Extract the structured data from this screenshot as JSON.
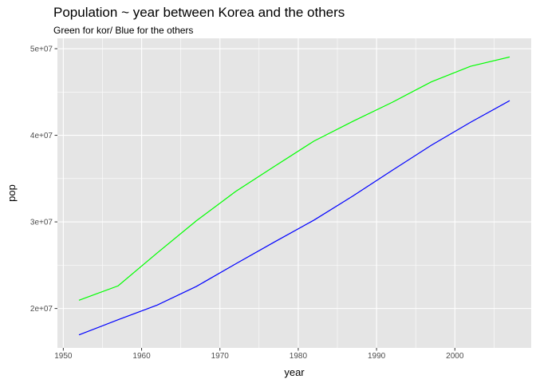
{
  "chart_data": {
    "type": "line",
    "title": "Population ~ year between Korea and the others",
    "subtitle": "Green for kor/ Blue for the others",
    "xlabel": "year",
    "ylabel": "pop",
    "xlim": [
      1949.25,
      2009.75
    ],
    "ylim": [
      15450000,
      51200000
    ],
    "x_ticks": [
      1950,
      1960,
      1970,
      1980,
      1990,
      2000
    ],
    "x_tick_labels": [
      "1950",
      "1960",
      "1970",
      "1980",
      "1990",
      "2000"
    ],
    "y_ticks": [
      20000000,
      30000000,
      40000000,
      50000000
    ],
    "y_tick_labels": [
      "2e+07",
      "3e+07",
      "4e+07",
      "5e+07"
    ],
    "grid": true,
    "legend": "none",
    "panel_background": "#e5e5e5",
    "grid_color": "#ffffff",
    "series": [
      {
        "color": "#00ff00",
        "x": [
          1952,
          1957,
          1962,
          1967,
          1972,
          1977,
          1982,
          1987,
          1992,
          1997,
          2002,
          2007
        ],
        "y": [
          20947571,
          22611552,
          26420307,
          30131000,
          33505000,
          36436000,
          39326000,
          41622000,
          43805450,
          46173816,
          47969150,
          49044790
        ]
      },
      {
        "color": "#0000ff",
        "x": [
          1952,
          1957,
          1962,
          1967,
          1972,
          1977,
          1982,
          1987,
          1992,
          1997,
          2002,
          2007
        ],
        "y": [
          16950000,
          18700000,
          20400000,
          22550000,
          25150000,
          27700000,
          30200000,
          33000000,
          35950000,
          38850000,
          41500000,
          44000000
        ]
      }
    ]
  }
}
